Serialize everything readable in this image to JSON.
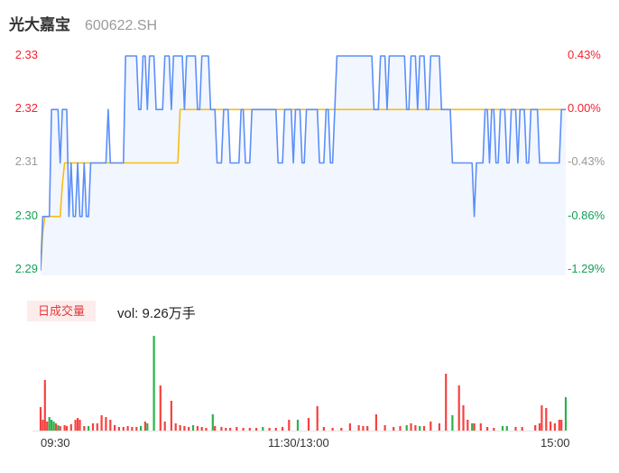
{
  "header": {
    "name": "光大嘉宝",
    "code": "600622.SH"
  },
  "colors": {
    "up_red": "#f5222d",
    "down_green": "#12a05a",
    "neutral_gray": "#999999",
    "price_line": "#5b8ff9",
    "avg_line": "#f6bd16",
    "area_fill": "rgba(91,143,249,0.08)",
    "bar_red": "#f8413f",
    "bar_green": "#28b44b",
    "badge_bg": "#fdecec",
    "badge_text": "#e4393c"
  },
  "price_axis": {
    "left": [
      {
        "label": "2.33",
        "color": "#f5222d"
      },
      {
        "label": "2.32",
        "color": "#f5222d"
      },
      {
        "label": "2.31",
        "color": "#999999"
      },
      {
        "label": "2.30",
        "color": "#12a05a"
      },
      {
        "label": "2.29",
        "color": "#12a05a"
      }
    ],
    "right": [
      {
        "label": "0.43%",
        "color": "#f5222d"
      },
      {
        "label": "0.00%",
        "color": "#f5222d"
      },
      {
        "label": "-0.43%",
        "color": "#999999"
      },
      {
        "label": "-0.86%",
        "color": "#12a05a"
      },
      {
        "label": "-1.29%",
        "color": "#12a05a"
      }
    ]
  },
  "volume_header": {
    "badge": "日成交量",
    "vol_text": "vol: 9.26万手"
  },
  "time_axis": {
    "open": "09:30",
    "mid": "11:30/13:00",
    "close": "15:00"
  },
  "chart_data": [
    {
      "type": "line",
      "title": "光大嘉宝 600622.SH 分时",
      "x": {
        "ticks": [
          "09:30",
          "11:30/13:00",
          "15:00"
        ],
        "minutes": 242
      },
      "y": {
        "price_ticks": [
          2.33,
          2.32,
          2.31,
          2.3,
          2.29
        ],
        "pct_ticks": [
          "0.43%",
          "0.00%",
          "-0.43%",
          "-0.86%",
          "-1.29%"
        ],
        "prev_close": 2.32,
        "last": 2.32,
        "range": [
          2.29,
          2.33
        ]
      },
      "legend": "off",
      "grid": "off",
      "series": [
        {
          "name": "price",
          "color": "#5b8ff9",
          "fill": "rgba(91,143,249,0.08)",
          "segments": [
            [
              0,
              0,
              2.29
            ],
            [
              1,
              4,
              2.3
            ],
            [
              5,
              8,
              2.32
            ],
            [
              9,
              9,
              2.31
            ],
            [
              10,
              12,
              2.32
            ],
            [
              13,
              13,
              2.3
            ],
            [
              14,
              14,
              2.31
            ],
            [
              15,
              16,
              2.3
            ],
            [
              17,
              17,
              2.31
            ],
            [
              18,
              19,
              2.3
            ],
            [
              20,
              20,
              2.31
            ],
            [
              21,
              22,
              2.3
            ],
            [
              23,
              30,
              2.31
            ],
            [
              31,
              31,
              2.32
            ],
            [
              32,
              38,
              2.31
            ],
            [
              39,
              44,
              2.33
            ],
            [
              45,
              46,
              2.32
            ],
            [
              47,
              48,
              2.33
            ],
            [
              49,
              49,
              2.32
            ],
            [
              50,
              52,
              2.33
            ],
            [
              53,
              56,
              2.32
            ],
            [
              57,
              59,
              2.33
            ],
            [
              60,
              60,
              2.32
            ],
            [
              61,
              65,
              2.33
            ],
            [
              66,
              66,
              2.32
            ],
            [
              67,
              71,
              2.33
            ],
            [
              72,
              73,
              2.32
            ],
            [
              74,
              77,
              2.33
            ],
            [
              78,
              80,
              2.32
            ],
            [
              81,
              83,
              2.31
            ],
            [
              84,
              86,
              2.32
            ],
            [
              87,
              91,
              2.31
            ],
            [
              92,
              93,
              2.32
            ],
            [
              94,
              96,
              2.31
            ],
            [
              97,
              108,
              2.32
            ],
            [
              109,
              111,
              2.31
            ],
            [
              112,
              115,
              2.32
            ],
            [
              116,
              116,
              2.31
            ],
            [
              117,
              119,
              2.32
            ],
            [
              120,
              121,
              2.31
            ],
            [
              122,
              127,
              2.32
            ],
            [
              128,
              130,
              2.31
            ],
            [
              131,
              132,
              2.32
            ],
            [
              133,
              134,
              2.31
            ],
            [
              135,
              135,
              2.32
            ],
            [
              136,
              152,
              2.33
            ],
            [
              153,
              155,
              2.32
            ],
            [
              156,
              158,
              2.33
            ],
            [
              159,
              159,
              2.32
            ],
            [
              160,
              167,
              2.33
            ],
            [
              168,
              169,
              2.32
            ],
            [
              170,
              172,
              2.33
            ],
            [
              173,
              173,
              2.32
            ],
            [
              174,
              176,
              2.33
            ],
            [
              177,
              178,
              2.32
            ],
            [
              179,
              183,
              2.33
            ],
            [
              184,
              188,
              2.32
            ],
            [
              189,
              198,
              2.31
            ],
            [
              199,
              199,
              2.3
            ],
            [
              200,
              203,
              2.31
            ],
            [
              204,
              205,
              2.32
            ],
            [
              206,
              206,
              2.31
            ],
            [
              207,
              208,
              2.32
            ],
            [
              209,
              210,
              2.31
            ],
            [
              211,
              213,
              2.32
            ],
            [
              214,
              215,
              2.31
            ],
            [
              216,
              218,
              2.32
            ],
            [
              219,
              219,
              2.31
            ],
            [
              220,
              222,
              2.32
            ],
            [
              223,
              224,
              2.31
            ],
            [
              225,
              228,
              2.32
            ],
            [
              229,
              238,
              2.31
            ],
            [
              239,
              241,
              2.32
            ]
          ]
        },
        {
          "name": "avg",
          "color": "#f6bd16",
          "segments": [
            [
              0,
              0,
              2.29
            ],
            [
              1,
              1,
              2.297
            ],
            [
              2,
              9,
              2.3
            ],
            [
              10,
              10,
              2.306
            ],
            [
              11,
              63,
              2.31
            ],
            [
              64,
              241,
              2.32
            ]
          ]
        }
      ]
    },
    {
      "type": "bar",
      "title": "日成交量",
      "total_label": "vol: 9.26万手",
      "colors": {
        "up": "#f8413f",
        "down": "#28b44b"
      },
      "bars": [
        [
          0,
          26,
          "r"
        ],
        [
          1,
          12,
          "r"
        ],
        [
          2,
          56,
          "r"
        ],
        [
          3,
          10,
          "r"
        ],
        [
          4,
          15,
          "g"
        ],
        [
          5,
          12,
          "g"
        ],
        [
          6,
          10,
          "g"
        ],
        [
          7,
          8,
          "r"
        ],
        [
          8,
          6,
          "g"
        ],
        [
          9,
          5,
          "r"
        ],
        [
          11,
          6,
          "r"
        ],
        [
          12,
          5,
          "r"
        ],
        [
          14,
          7,
          "r"
        ],
        [
          16,
          12,
          "r"
        ],
        [
          17,
          14,
          "r"
        ],
        [
          18,
          12,
          "r"
        ],
        [
          20,
          5,
          "r"
        ],
        [
          22,
          5,
          "g"
        ],
        [
          24,
          8,
          "r"
        ],
        [
          26,
          8,
          "r"
        ],
        [
          28,
          17,
          "r"
        ],
        [
          30,
          15,
          "r"
        ],
        [
          32,
          12,
          "r"
        ],
        [
          34,
          6,
          "r"
        ],
        [
          36,
          4,
          "r"
        ],
        [
          38,
          4,
          "r"
        ],
        [
          40,
          5,
          "r"
        ],
        [
          42,
          4,
          "r"
        ],
        [
          44,
          4,
          "r"
        ],
        [
          46,
          5,
          "g"
        ],
        [
          48,
          10,
          "r"
        ],
        [
          49,
          8,
          "g"
        ],
        [
          52,
          105,
          "g"
        ],
        [
          55,
          50,
          "r"
        ],
        [
          57,
          10,
          "r"
        ],
        [
          60,
          33,
          "r"
        ],
        [
          62,
          8,
          "r"
        ],
        [
          64,
          6,
          "r"
        ],
        [
          66,
          5,
          "r"
        ],
        [
          68,
          4,
          "r"
        ],
        [
          70,
          6,
          "g"
        ],
        [
          72,
          5,
          "r"
        ],
        [
          74,
          4,
          "r"
        ],
        [
          76,
          3,
          "r"
        ],
        [
          79,
          18,
          "g"
        ],
        [
          80,
          5,
          "r"
        ],
        [
          83,
          4,
          "r"
        ],
        [
          85,
          3,
          "r"
        ],
        [
          87,
          3,
          "r"
        ],
        [
          90,
          4,
          "r"
        ],
        [
          93,
          3,
          "r"
        ],
        [
          96,
          3,
          "r"
        ],
        [
          99,
          3,
          "r"
        ],
        [
          102,
          4,
          "g"
        ],
        [
          105,
          3,
          "r"
        ],
        [
          108,
          3,
          "r"
        ],
        [
          111,
          4,
          "r"
        ],
        [
          114,
          12,
          "r"
        ],
        [
          118,
          12,
          "g"
        ],
        [
          123,
          14,
          "r"
        ],
        [
          127,
          27,
          "r"
        ],
        [
          130,
          4,
          "r"
        ],
        [
          134,
          3,
          "r"
        ],
        [
          138,
          3,
          "r"
        ],
        [
          142,
          8,
          "r"
        ],
        [
          146,
          6,
          "r"
        ],
        [
          148,
          5,
          "r"
        ],
        [
          150,
          5,
          "r"
        ],
        [
          154,
          18,
          "r"
        ],
        [
          158,
          6,
          "r"
        ],
        [
          162,
          4,
          "r"
        ],
        [
          165,
          5,
          "r"
        ],
        [
          168,
          6,
          "g"
        ],
        [
          170,
          8,
          "r"
        ],
        [
          172,
          6,
          "r"
        ],
        [
          174,
          5,
          "g"
        ],
        [
          176,
          5,
          "r"
        ],
        [
          179,
          10,
          "r"
        ],
        [
          183,
          8,
          "r"
        ],
        [
          186,
          63,
          "r"
        ],
        [
          189,
          17,
          "g"
        ],
        [
          192,
          50,
          "r"
        ],
        [
          194,
          28,
          "r"
        ],
        [
          196,
          12,
          "r"
        ],
        [
          198,
          8,
          "g"
        ],
        [
          199,
          8,
          "r"
        ],
        [
          202,
          8,
          "r"
        ],
        [
          205,
          4,
          "r"
        ],
        [
          208,
          3,
          "r"
        ],
        [
          212,
          5,
          "g"
        ],
        [
          214,
          5,
          "g"
        ],
        [
          218,
          4,
          "r"
        ],
        [
          221,
          4,
          "r"
        ],
        [
          227,
          6,
          "r"
        ],
        [
          229,
          8,
          "r"
        ],
        [
          230,
          28,
          "r"
        ],
        [
          232,
          25,
          "r"
        ],
        [
          234,
          10,
          "r"
        ],
        [
          236,
          8,
          "r"
        ],
        [
          238,
          12,
          "r"
        ],
        [
          239,
          12,
          "r"
        ],
        [
          241,
          37,
          "g"
        ]
      ]
    }
  ]
}
